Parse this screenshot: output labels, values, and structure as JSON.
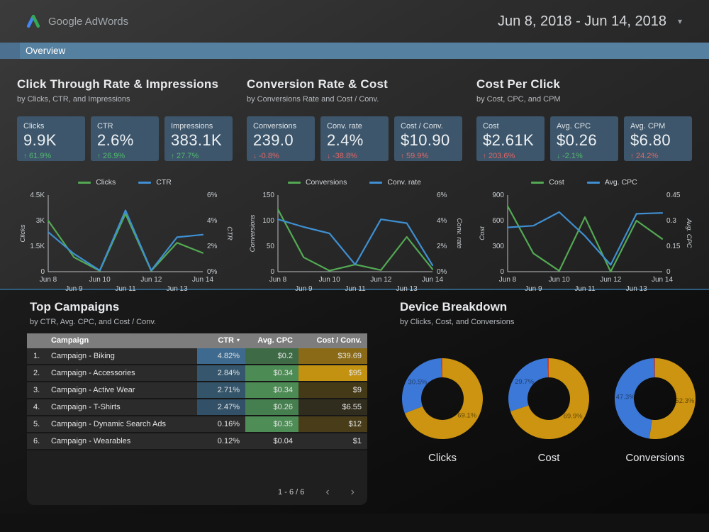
{
  "header": {
    "brand": "Google AdWords",
    "date_range": "Jun 8, 2018 - Jun 14, 2018",
    "date_caret": "▾"
  },
  "nav": {
    "tab": "Overview"
  },
  "colors": {
    "tab_bar": "#55809f",
    "card_bg": "#3d566b",
    "line_green": "#53a953",
    "line_blue": "#3f8fd2",
    "pie_gold": "#cc9410",
    "pie_blue": "#3c78d8",
    "pie_red": "#cc4125",
    "delta_good": "#53b96e",
    "delta_bad": "#e06666"
  },
  "sections": [
    {
      "title": "Click Through Rate & Impressions",
      "subtitle": "by Clicks, CTR, and Impressions",
      "cards": [
        {
          "label": "Clicks",
          "value": "9.9K",
          "arrow": "↑",
          "delta": "61.9%",
          "sentiment": "good"
        },
        {
          "label": "CTR",
          "value": "2.6%",
          "arrow": "↑",
          "delta": "26.9%",
          "sentiment": "good"
        },
        {
          "label": "Impressions",
          "value": "383.1K",
          "arrow": "↑",
          "delta": "27.7%",
          "sentiment": "good"
        }
      ]
    },
    {
      "title": "Conversion Rate & Cost",
      "subtitle": "by Conversions Rate and Cost / Conv.",
      "cards": [
        {
          "label": "Conversions",
          "value": "239.0",
          "arrow": "↓",
          "delta": "-0.8%",
          "sentiment": "bad"
        },
        {
          "label": "Conv. rate",
          "value": "2.4%",
          "arrow": "↓",
          "delta": "-38.8%",
          "sentiment": "bad"
        },
        {
          "label": "Cost / Conv.",
          "value": "$10.90",
          "arrow": "↑",
          "delta": "59.9%",
          "sentiment": "bad"
        }
      ]
    },
    {
      "title": "Cost Per Click",
      "subtitle": "by Cost, CPC, and CPM",
      "cards": [
        {
          "label": "Cost",
          "value": "$2.61K",
          "arrow": "↑",
          "delta": "203.6%",
          "sentiment": "bad"
        },
        {
          "label": "Avg. CPC",
          "value": "$0.26",
          "arrow": "↓",
          "delta": "-2.1%",
          "sentiment": "good"
        },
        {
          "label": "Avg. CPM",
          "value": "$6.80",
          "arrow": "↑",
          "delta": "24.2%",
          "sentiment": "bad"
        }
      ]
    }
  ],
  "chart_data": [
    {
      "type": "line",
      "title": "Clicks & CTR by day",
      "x": [
        "Jun 8",
        "Jun 9",
        "Jun 10",
        "Jun 11",
        "Jun 12",
        "Jun 13",
        "Jun 14"
      ],
      "series": [
        {
          "name": "Clicks",
          "axis": "left",
          "color": "#53a953",
          "values": [
            3000,
            850,
            50,
            3400,
            50,
            1700,
            1100
          ]
        },
        {
          "name": "CTR",
          "axis": "right",
          "color": "#3f8fd2",
          "values": [
            3.1,
            1.4,
            0.1,
            4.8,
            0.1,
            2.7,
            2.9
          ]
        }
      ],
      "left_axis": {
        "label": "Clicks",
        "min": 0,
        "max": 4500,
        "ticks": [
          "0",
          "1.5K",
          "3K",
          "4.5K"
        ]
      },
      "right_axis": {
        "label": "CTR",
        "min": 0,
        "max": 6,
        "ticks": [
          "0%",
          "2%",
          "4%",
          "6%"
        ]
      },
      "legend_position": "top",
      "grid": false
    },
    {
      "type": "line",
      "title": "Conversions & Conv. rate by day",
      "x": [
        "Jun 8",
        "Jun 9",
        "Jun 10",
        "Jun 11",
        "Jun 12",
        "Jun 13",
        "Jun 14"
      ],
      "series": [
        {
          "name": "Conversions",
          "axis": "left",
          "color": "#53a953",
          "values": [
            122,
            28,
            2,
            14,
            3,
            68,
            5
          ]
        },
        {
          "name": "Conv. rate",
          "axis": "right",
          "color": "#3f8fd2",
          "values": [
            4.1,
            3.5,
            3.0,
            0.55,
            4.1,
            3.8,
            0.5
          ]
        }
      ],
      "left_axis": {
        "label": "Conversions",
        "min": 0,
        "max": 150,
        "ticks": [
          "0",
          "50",
          "100",
          "150"
        ]
      },
      "right_axis": {
        "label": "Conv. rate",
        "min": 0,
        "max": 6,
        "ticks": [
          "0%",
          "2%",
          "4%",
          "6%"
        ]
      },
      "legend_position": "top",
      "grid": false
    },
    {
      "type": "line",
      "title": "Cost & Avg. CPC by day",
      "x": [
        "Jun 8",
        "Jun 9",
        "Jun 10",
        "Jun 11",
        "Jun 12",
        "Jun 13",
        "Jun 14"
      ],
      "series": [
        {
          "name": "Cost",
          "axis": "left",
          "color": "#53a953",
          "values": [
            770,
            215,
            10,
            640,
            0,
            600,
            385
          ]
        },
        {
          "name": "Avg. CPC",
          "axis": "right",
          "color": "#3f8fd2",
          "values": [
            0.26,
            0.27,
            0.35,
            0.21,
            0.04,
            0.34,
            0.345
          ]
        }
      ],
      "left_axis": {
        "label": "Cost",
        "min": 0,
        "max": 900,
        "ticks": [
          "0",
          "300",
          "600",
          "900"
        ]
      },
      "right_axis": {
        "label": "Avg. CPC",
        "min": 0,
        "max": 0.45,
        "ticks": [
          "0",
          "0.15",
          "0.3",
          "0.45"
        ]
      },
      "legend_position": "top",
      "grid": false
    },
    {
      "type": "pie",
      "title": "Clicks",
      "slices": [
        {
          "label": "69.1%",
          "value": 69.1,
          "color": "#cc9410"
        },
        {
          "label": "30.5%",
          "value": 30.5,
          "color": "#3c78d8"
        },
        {
          "label": "",
          "value": 0.4,
          "color": "#cc4125"
        }
      ]
    },
    {
      "type": "pie",
      "title": "Cost",
      "slices": [
        {
          "label": "69.9%",
          "value": 69.9,
          "color": "#cc9410"
        },
        {
          "label": "29.7%",
          "value": 29.7,
          "color": "#3c78d8"
        },
        {
          "label": "",
          "value": 0.4,
          "color": "#cc4125"
        }
      ]
    },
    {
      "type": "pie",
      "title": "Conversions",
      "slices": [
        {
          "label": "52.3%",
          "value": 52.3,
          "color": "#cc9410"
        },
        {
          "label": "47.3%",
          "value": 47.3,
          "color": "#3c78d8"
        },
        {
          "label": "",
          "value": 0.4,
          "color": "#cc4125"
        }
      ]
    }
  ],
  "campaigns": {
    "title": "Top Campaigns",
    "subtitle": "by CTR, Avg. CPC, and Cost / Conv.",
    "table": {
      "headers": [
        "Campaign",
        "CTR",
        "Avg. CPC",
        "Cost / Conv."
      ],
      "sort_column": "CTR",
      "sort_caret": "▾",
      "rows": [
        {
          "rank": "1.",
          "name": "Campaign - Biking",
          "ctr": "4.82%",
          "cpc": "$0.2",
          "cost_conv": "$39.69",
          "ctr_bg": "#3d6a8e",
          "cpc_bg": "#3e6b46",
          "cc_bg": "#8a6a16"
        },
        {
          "rank": "2.",
          "name": "Campaign - Accessories",
          "ctr": "2.84%",
          "cpc": "$0.34",
          "cost_conv": "$95",
          "ctr_bg": "#35566d",
          "cpc_bg": "#4d8b55",
          "cc_bg": "#c29210"
        },
        {
          "rank": "3.",
          "name": "Campaign - Active Wear",
          "ctr": "2.71%",
          "cpc": "$0.34",
          "cost_conv": "$9",
          "ctr_bg": "#34546a",
          "cpc_bg": "#4d8b55",
          "cc_bg": "#453a18"
        },
        {
          "rank": "4.",
          "name": "Campaign - T-Shirts",
          "ctr": "2.47%",
          "cpc": "$0.26",
          "cost_conv": "$6.55",
          "ctr_bg": "#325168",
          "cpc_bg": "#467f4f",
          "cc_bg": "#302d1e"
        },
        {
          "rank": "5.",
          "name": "Campaign - Dynamic Search Ads",
          "ctr": "0.16%",
          "cpc": "$0.35",
          "cost_conv": "$12",
          "ctr_bg": "",
          "cpc_bg": "#4e8d56",
          "cc_bg": "#483d18"
        },
        {
          "rank": "6.",
          "name": "Campaign - Wearables",
          "ctr": "0.12%",
          "cpc": "$0.04",
          "cost_conv": "$1",
          "ctr_bg": "",
          "cpc_bg": "",
          "cc_bg": ""
        }
      ],
      "pagination": {
        "label": "1 - 6 / 6",
        "prev": "‹",
        "next": "›"
      }
    }
  },
  "devices": {
    "title": "Device Breakdown",
    "subtitle": "by Clicks, Cost, and Conversions",
    "donut_labels": [
      "Clicks",
      "Cost",
      "Conversions"
    ]
  }
}
